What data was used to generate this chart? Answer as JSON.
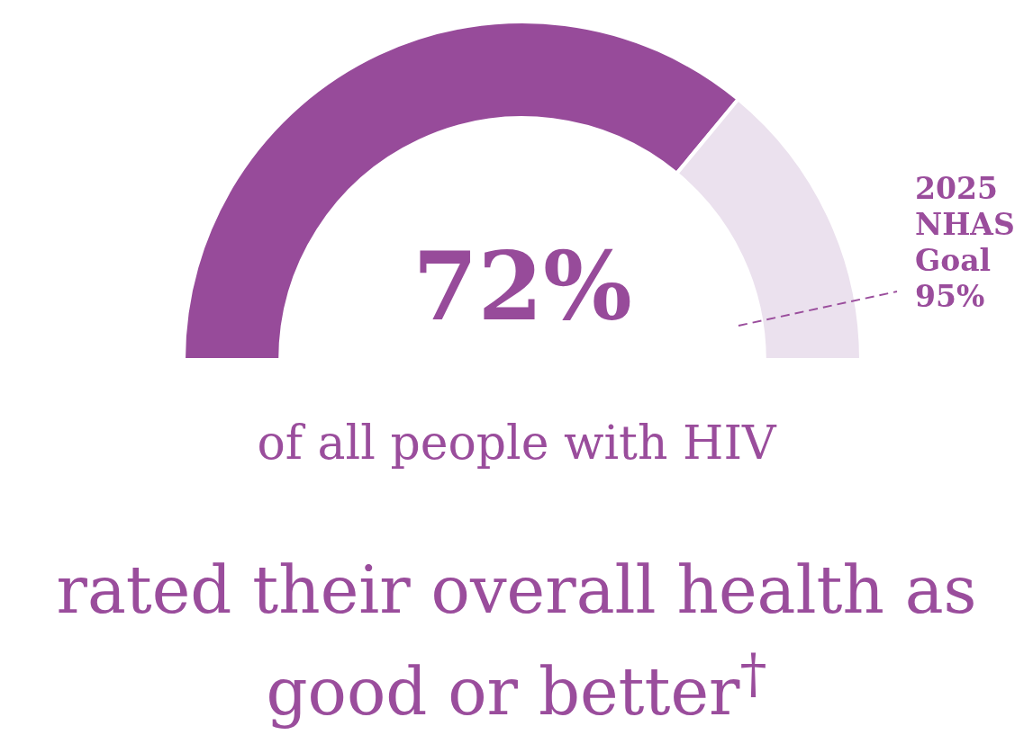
{
  "chart_data": {
    "type": "donut",
    "categories": [
      null,
      null
    ],
    "values": [
      72,
      28
    ],
    "colors": [
      "#974b9a",
      "#ebe1ee"
    ],
    "value_labels": [
      "72%",
      null
    ],
    "subtitle": "of all people with HIV",
    "title": "rated their overall health as good or better$^{†}$",
    "annotations": [
      "2025 NHAS Goal 95%"
    ]
  }
}
